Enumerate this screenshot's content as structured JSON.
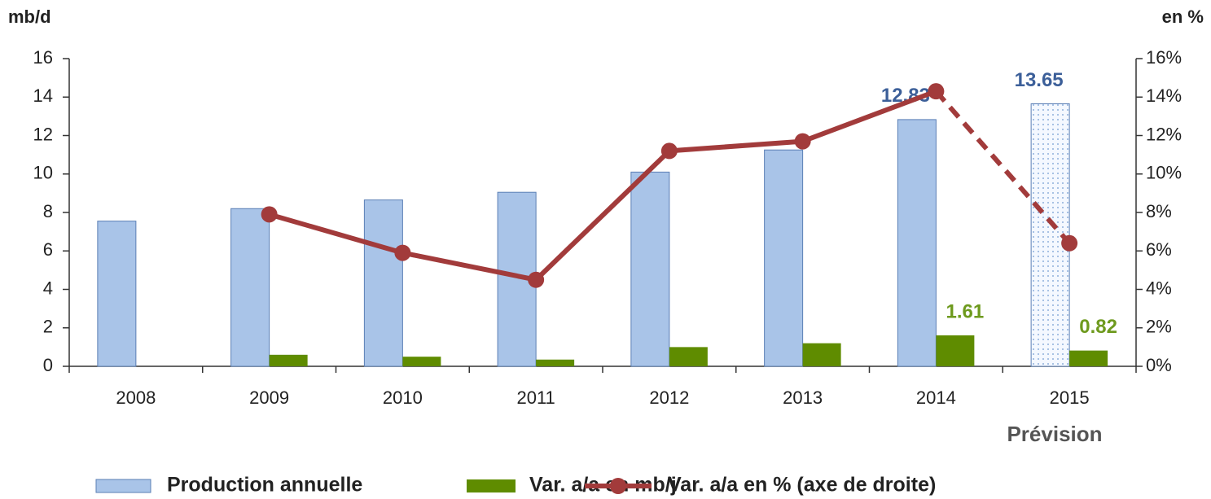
{
  "chart_data": {
    "type": "bar",
    "y_label": "mb/d",
    "y2_label": "en %",
    "annotation": "Prévision",
    "categories": [
      "2008",
      "2009",
      "2010",
      "2011",
      "2012",
      "2013",
      "2014",
      "2015"
    ],
    "series": [
      {
        "name": "Production annuelle",
        "type": "bar",
        "color": "#a9c4e8",
        "values": [
          7.55,
          8.2,
          8.65,
          9.05,
          10.1,
          11.25,
          12.83,
          13.65
        ],
        "value_labels": [
          null,
          null,
          null,
          null,
          null,
          null,
          "12.83",
          "13.65"
        ],
        "label_color": "#3c5f99"
      },
      {
        "name": "Var. a/a en mb/j",
        "type": "bar",
        "color": "#5f8c00",
        "values": [
          null,
          0.6,
          0.5,
          0.35,
          1.0,
          1.2,
          1.61,
          0.82
        ],
        "value_labels": [
          null,
          null,
          null,
          null,
          null,
          null,
          "1.61",
          "0.82"
        ],
        "label_color": "#6e9a1e"
      },
      {
        "name": "Var. a/a en % (axe de droite)",
        "type": "line",
        "axis": "y2",
        "color": "#a23b3b",
        "values": [
          null,
          7.9,
          5.9,
          4.5,
          11.2,
          11.7,
          14.3,
          6.4
        ]
      }
    ],
    "ylim": [
      0,
      16
    ],
    "yticks": [
      0,
      2,
      4,
      6,
      8,
      10,
      12,
      14,
      16
    ],
    "y2lim": [
      0,
      16
    ],
    "y2ticks": [
      {
        "value": 0,
        "label": "0%"
      },
      {
        "value": 2,
        "label": "2%"
      },
      {
        "value": 4,
        "label": "4%"
      },
      {
        "value": 6,
        "label": "6%"
      },
      {
        "value": 8,
        "label": "8%"
      },
      {
        "value": 10,
        "label": "10%"
      },
      {
        "value": 12,
        "label": "12%"
      },
      {
        "value": 14,
        "label": "14%"
      },
      {
        "value": 16,
        "label": "16%"
      }
    ],
    "grid": false,
    "legend": "bottom"
  }
}
